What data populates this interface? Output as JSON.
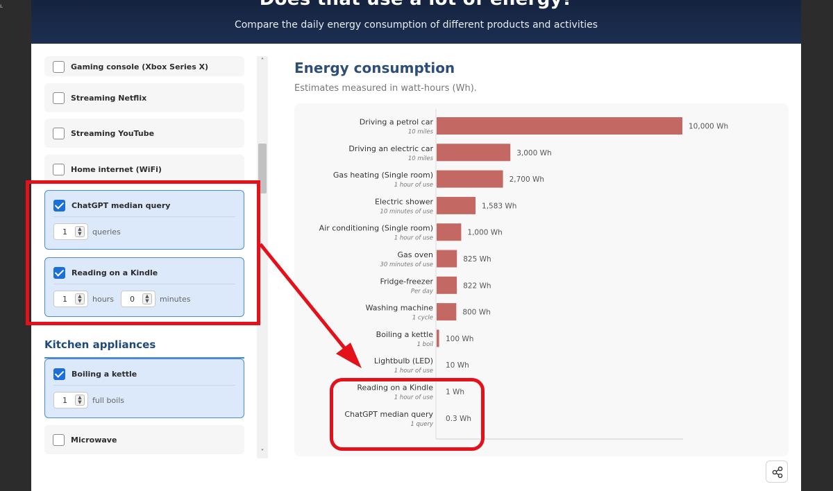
{
  "header": {
    "title": "Does that use a lot of energy?",
    "subtitle": "Compare the daily energy consumption of different products and activities"
  },
  "sidebar": {
    "items": [
      {
        "label": "Gaming console (Xbox Series X)",
        "checked": false
      },
      {
        "label": "Streaming Netflix",
        "checked": false
      },
      {
        "label": "Streaming YouTube",
        "checked": false
      },
      {
        "label": "Home internet (WiFi)",
        "checked": false
      },
      {
        "label": "ChatGPT median query",
        "checked": true,
        "qty": "1",
        "unit": "queries"
      },
      {
        "label": "Reading on a Kindle",
        "checked": true,
        "qty": "1",
        "unit": "hours",
        "qty2": "0",
        "unit2": "minutes"
      }
    ],
    "kitchen_title": "Kitchen appliances",
    "kitchen_items": [
      {
        "label": "Boiling a kettle",
        "checked": true,
        "qty": "1",
        "unit": "full boils"
      },
      {
        "label": "Microwave",
        "checked": false
      }
    ]
  },
  "panel": {
    "title": "Energy consumption",
    "subtitle": "Estimates measured in watt-hours (Wh)."
  },
  "colors": {
    "bar": "#c46864",
    "highlight": "#e4101a",
    "accent": "#1b6fd6"
  },
  "icons": {
    "share": "share-icon"
  },
  "chart_data": {
    "type": "bar",
    "orientation": "horizontal",
    "categories": [
      "Driving a petrol car",
      "Driving  an electric car",
      "Gas heating (Single room)",
      "Electric shower",
      "Air conditioning (Single room)",
      "Gas oven",
      "Fridge-freezer",
      "Washing machine",
      "Boiling a kettle",
      "Lightbulb (LED)",
      "Reading on a Kindle",
      "ChatGPT median query"
    ],
    "sublabels": [
      "10 miles",
      "10 miles",
      "1 hour of use",
      "10 minutes of use",
      "1 hour of use",
      "30 minutes of use",
      "Per day",
      "1 cycle",
      "1 boil",
      "1 hour of use",
      "1 hour of use",
      "1 query"
    ],
    "values": [
      10000,
      3000,
      2700,
      1583,
      1000,
      825,
      822,
      800,
      100,
      10,
      1,
      0.3
    ],
    "value_labels": [
      "10,000 Wh",
      "3,000 Wh",
      "2,700 Wh",
      "1,583 Wh",
      "1,000 Wh",
      "825 Wh",
      "822 Wh",
      "800 Wh",
      "100 Wh",
      "10 Wh",
      "1 Wh",
      "0.3 Wh"
    ],
    "xlim": [
      0,
      10000
    ],
    "grid": false
  }
}
